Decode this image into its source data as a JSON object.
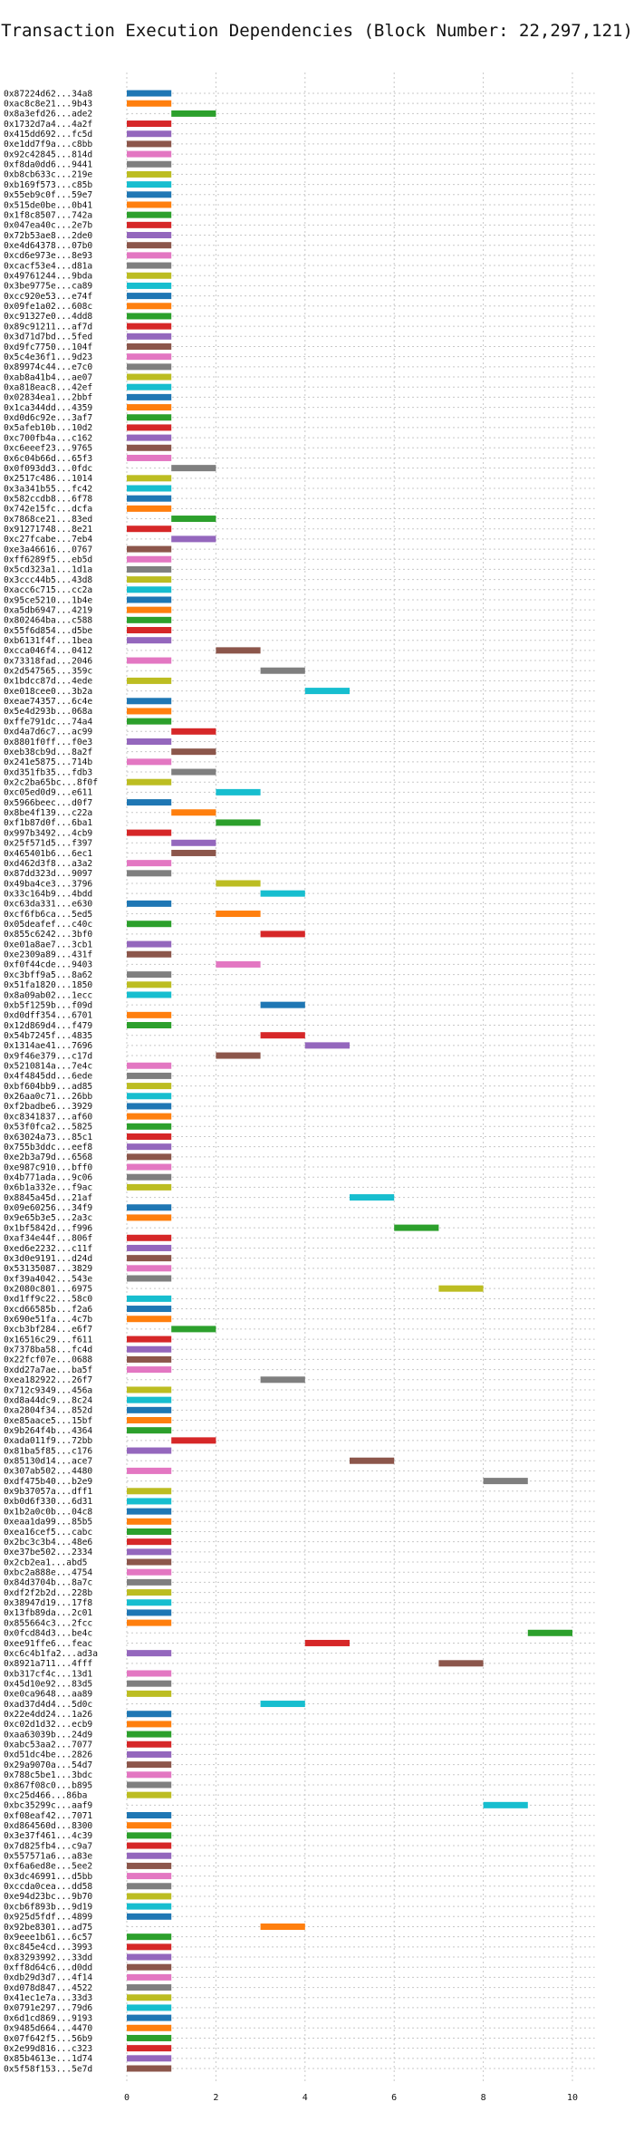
{
  "chart_data": {
    "type": "bar",
    "orientation": "horizontal-gantt",
    "title": "Transaction Execution Dependencies (Block Number: 22,297,121)",
    "xlabel": "",
    "ylabel": "",
    "xlim": [
      0,
      10.5
    ],
    "xticks": [
      0,
      2,
      4,
      6,
      8,
      10
    ],
    "grid": true,
    "colors": [
      "#1f77b4",
      "#ff7f0e",
      "#2ca02c",
      "#d62728",
      "#9467bd",
      "#8c564b",
      "#e377c2",
      "#7f7f7f",
      "#bcbd22",
      "#17becf"
    ],
    "tasks": [
      {
        "label": "0x87224d62...34a8",
        "start": 0,
        "end": 1
      },
      {
        "label": "0xac8c8e21...9b43",
        "start": 0,
        "end": 1
      },
      {
        "label": "0x8a3efd26...ade2",
        "start": 1,
        "end": 2
      },
      {
        "label": "0x1732d7a4...4a2f",
        "start": 0,
        "end": 1
      },
      {
        "label": "0x415dd692...fc5d",
        "start": 0,
        "end": 1
      },
      {
        "label": "0xe1dd7f9a...c8bb",
        "start": 0,
        "end": 1
      },
      {
        "label": "0x92c42845...814d",
        "start": 0,
        "end": 1
      },
      {
        "label": "0xf8da0dd6...9441",
        "start": 0,
        "end": 1
      },
      {
        "label": "0xb8cb633c...219e",
        "start": 0,
        "end": 1
      },
      {
        "label": "0xb169f573...c85b",
        "start": 0,
        "end": 1
      },
      {
        "label": "0x55eb9c0f...59e7",
        "start": 0,
        "end": 1
      },
      {
        "label": "0x515de0be...0b41",
        "start": 0,
        "end": 1
      },
      {
        "label": "0x1f8c8507...742a",
        "start": 0,
        "end": 1
      },
      {
        "label": "0x047ea40c...2e7b",
        "start": 0,
        "end": 1
      },
      {
        "label": "0x72b53ae8...2de0",
        "start": 0,
        "end": 1
      },
      {
        "label": "0xe4d64378...07b0",
        "start": 0,
        "end": 1
      },
      {
        "label": "0xcd6e973e...8e93",
        "start": 0,
        "end": 1
      },
      {
        "label": "0xcacf53e4...d81a",
        "start": 0,
        "end": 1
      },
      {
        "label": "0x49761244...9bda",
        "start": 0,
        "end": 1
      },
      {
        "label": "0x3be9775e...ca89",
        "start": 0,
        "end": 1
      },
      {
        "label": "0xcc920e53...e74f",
        "start": 0,
        "end": 1
      },
      {
        "label": "0x09fe1a02...608c",
        "start": 0,
        "end": 1
      },
      {
        "label": "0xc91327e0...4dd8",
        "start": 0,
        "end": 1
      },
      {
        "label": "0x89c91211...af7d",
        "start": 0,
        "end": 1
      },
      {
        "label": "0x3d71d7bd...5fed",
        "start": 0,
        "end": 1
      },
      {
        "label": "0xd9fc7750...104f",
        "start": 0,
        "end": 1
      },
      {
        "label": "0x5c4e36f1...9d23",
        "start": 0,
        "end": 1
      },
      {
        "label": "0x89974c44...e7c0",
        "start": 0,
        "end": 1
      },
      {
        "label": "0xab8a41b4...ae07",
        "start": 0,
        "end": 1
      },
      {
        "label": "0xa818eac8...42ef",
        "start": 0,
        "end": 1
      },
      {
        "label": "0x02834ea1...2bbf",
        "start": 0,
        "end": 1
      },
      {
        "label": "0x1ca344dd...4359",
        "start": 0,
        "end": 1
      },
      {
        "label": "0xd0d6c92e...3af7",
        "start": 0,
        "end": 1
      },
      {
        "label": "0x5afeb10b...10d2",
        "start": 0,
        "end": 1
      },
      {
        "label": "0xc700fb4a...c162",
        "start": 0,
        "end": 1
      },
      {
        "label": "0xc6eeef23...9765",
        "start": 0,
        "end": 1
      },
      {
        "label": "0x6c04b66d...65f3",
        "start": 0,
        "end": 1
      },
      {
        "label": "0x0f093dd3...0fdc",
        "start": 1,
        "end": 2
      },
      {
        "label": "0x2517c486...1014",
        "start": 0,
        "end": 1
      },
      {
        "label": "0x3a341b55...fc42",
        "start": 0,
        "end": 1
      },
      {
        "label": "0x582ccdb8...6f78",
        "start": 0,
        "end": 1
      },
      {
        "label": "0x742e15fc...dcfa",
        "start": 0,
        "end": 1
      },
      {
        "label": "0x7868ce21...83ed",
        "start": 1,
        "end": 2
      },
      {
        "label": "0x91271748...8e21",
        "start": 0,
        "end": 1
      },
      {
        "label": "0xc27fcabe...7eb4",
        "start": 1,
        "end": 2
      },
      {
        "label": "0xe3a46616...0767",
        "start": 0,
        "end": 1
      },
      {
        "label": "0xff6289f5...eb5d",
        "start": 0,
        "end": 1
      },
      {
        "label": "0x5cd323a1...1d1a",
        "start": 0,
        "end": 1
      },
      {
        "label": "0x3ccc44b5...43d8",
        "start": 0,
        "end": 1
      },
      {
        "label": "0xacc6c715...cc2a",
        "start": 0,
        "end": 1
      },
      {
        "label": "0x95ce5210...1b4e",
        "start": 0,
        "end": 1
      },
      {
        "label": "0xa5db6947...4219",
        "start": 0,
        "end": 1
      },
      {
        "label": "0x802464ba...c588",
        "start": 0,
        "end": 1
      },
      {
        "label": "0x55f6d854...d5be",
        "start": 0,
        "end": 1
      },
      {
        "label": "0xb6131f4f...1bea",
        "start": 0,
        "end": 1
      },
      {
        "label": "0xcca046f4...0412",
        "start": 2,
        "end": 3
      },
      {
        "label": "0x73318fad...2046",
        "start": 0,
        "end": 1
      },
      {
        "label": "0x2d547565...359c",
        "start": 3,
        "end": 4
      },
      {
        "label": "0x1bdcc87d...4ede",
        "start": 0,
        "end": 1
      },
      {
        "label": "0xe018cee0...3b2a",
        "start": 4,
        "end": 5
      },
      {
        "label": "0xeae74357...6c4e",
        "start": 0,
        "end": 1
      },
      {
        "label": "0x5e4d293b...068a",
        "start": 0,
        "end": 1
      },
      {
        "label": "0xffe791dc...74a4",
        "start": 0,
        "end": 1
      },
      {
        "label": "0xd4a7d6c7...ac99",
        "start": 1,
        "end": 2
      },
      {
        "label": "0x8801f0ff...f0e3",
        "start": 0,
        "end": 1
      },
      {
        "label": "0xeb38cb9d...8a2f",
        "start": 1,
        "end": 2
      },
      {
        "label": "0x241e5875...714b",
        "start": 0,
        "end": 1
      },
      {
        "label": "0xd351fb35...fdb3",
        "start": 1,
        "end": 2
      },
      {
        "label": "0x2c2ba65bc...8f0f",
        "start": 0,
        "end": 1
      },
      {
        "label": "0xc05ed0d9...e611",
        "start": 2,
        "end": 3
      },
      {
        "label": "0x5966beec...d0f7",
        "start": 0,
        "end": 1
      },
      {
        "label": "0x8be4f139...c22a",
        "start": 1,
        "end": 2
      },
      {
        "label": "0xf1b87d0f...6ba1",
        "start": 2,
        "end": 3
      },
      {
        "label": "0x997b3492...4cb9",
        "start": 0,
        "end": 1
      },
      {
        "label": "0x25f571d5...f397",
        "start": 1,
        "end": 2
      },
      {
        "label": "0x465401b6...6ec1",
        "start": 1,
        "end": 2
      },
      {
        "label": "0xd462d3f8...a3a2",
        "start": 0,
        "end": 1
      },
      {
        "label": "0x87dd323d...9097",
        "start": 0,
        "end": 1
      },
      {
        "label": "0x49ba4ce3...3796",
        "start": 2,
        "end": 3
      },
      {
        "label": "0x33c164b9...4bdd",
        "start": 3,
        "end": 4
      },
      {
        "label": "0xc63da331...e630",
        "start": 0,
        "end": 1
      },
      {
        "label": "0xcf6fb6ca...5ed5",
        "start": 2,
        "end": 3
      },
      {
        "label": "0x05deafef...c40c",
        "start": 0,
        "end": 1
      },
      {
        "label": "0x855c6242...3bf0",
        "start": 3,
        "end": 4
      },
      {
        "label": "0xe01a8ae7...3cb1",
        "start": 0,
        "end": 1
      },
      {
        "label": "0xe2309a89...431f",
        "start": 0,
        "end": 1
      },
      {
        "label": "0xf0f44cde...9403",
        "start": 2,
        "end": 3
      },
      {
        "label": "0xc3bff9a5...8a62",
        "start": 0,
        "end": 1
      },
      {
        "label": "0x51fa1820...1850",
        "start": 0,
        "end": 1
      },
      {
        "label": "0x8a09ab02...1ecc",
        "start": 0,
        "end": 1
      },
      {
        "label": "0xb5f1259b...f09d",
        "start": 3,
        "end": 4
      },
      {
        "label": "0xd0dff354...6701",
        "start": 0,
        "end": 1
      },
      {
        "label": "0x12d869d4...f479",
        "start": 0,
        "end": 1
      },
      {
        "label": "0x54b7245f...4835",
        "start": 3,
        "end": 4
      },
      {
        "label": "0x1314ae41...7696",
        "start": 4,
        "end": 5
      },
      {
        "label": "0x9f46e379...c17d",
        "start": 2,
        "end": 3
      },
      {
        "label": "0x5210814a...7e4c",
        "start": 0,
        "end": 1
      },
      {
        "label": "0x4f4845dd...6ede",
        "start": 0,
        "end": 1
      },
      {
        "label": "0xbf604bb9...ad85",
        "start": 0,
        "end": 1
      },
      {
        "label": "0x26aa0c71...26bb",
        "start": 0,
        "end": 1
      },
      {
        "label": "0xf2badbe6...3929",
        "start": 0,
        "end": 1
      },
      {
        "label": "0xc8341837...af60",
        "start": 0,
        "end": 1
      },
      {
        "label": "0x53f0fca2...5825",
        "start": 0,
        "end": 1
      },
      {
        "label": "0x63024a73...85c1",
        "start": 0,
        "end": 1
      },
      {
        "label": "0x755b3ddc...eef8",
        "start": 0,
        "end": 1
      },
      {
        "label": "0xe2b3a79d...6568",
        "start": 0,
        "end": 1
      },
      {
        "label": "0xe987c910...bff0",
        "start": 0,
        "end": 1
      },
      {
        "label": "0x4b771ada...9c06",
        "start": 0,
        "end": 1
      },
      {
        "label": "0x6b1a332e...f9ac",
        "start": 0,
        "end": 1
      },
      {
        "label": "0x8845a45d...21af",
        "start": 5,
        "end": 6
      },
      {
        "label": "0x09e60256...34f9",
        "start": 0,
        "end": 1
      },
      {
        "label": "0x9e65b3e5...2a3c",
        "start": 0,
        "end": 1
      },
      {
        "label": "0x1bf5842d...f996",
        "start": 6,
        "end": 7
      },
      {
        "label": "0xaf34e44f...806f",
        "start": 0,
        "end": 1
      },
      {
        "label": "0xed6e2232...c11f",
        "start": 0,
        "end": 1
      },
      {
        "label": "0x3d0e9191...d24d",
        "start": 0,
        "end": 1
      },
      {
        "label": "0x53135087...3829",
        "start": 0,
        "end": 1
      },
      {
        "label": "0xf39a4042...543e",
        "start": 0,
        "end": 1
      },
      {
        "label": "0x2080c801...6975",
        "start": 7,
        "end": 8
      },
      {
        "label": "0xd1ff9c22...58c0",
        "start": 0,
        "end": 1
      },
      {
        "label": "0xcd66585b...f2a6",
        "start": 0,
        "end": 1
      },
      {
        "label": "0x690e51fa...4c7b",
        "start": 0,
        "end": 1
      },
      {
        "label": "0xcb3bf284...e6f7",
        "start": 1,
        "end": 2
      },
      {
        "label": "0x16516c29...f611",
        "start": 0,
        "end": 1
      },
      {
        "label": "0x7378ba58...fc4d",
        "start": 0,
        "end": 1
      },
      {
        "label": "0x22fcf07e...0688",
        "start": 0,
        "end": 1
      },
      {
        "label": "0xdd27a7ae...ba5f",
        "start": 0,
        "end": 1
      },
      {
        "label": "0xea182922...26f7",
        "start": 3,
        "end": 4
      },
      {
        "label": "0x712c9349...456a",
        "start": 0,
        "end": 1
      },
      {
        "label": "0xd8a44dc9...8c24",
        "start": 0,
        "end": 1
      },
      {
        "label": "0xa2804f34...852d",
        "start": 0,
        "end": 1
      },
      {
        "label": "0xe85aace5...15bf",
        "start": 0,
        "end": 1
      },
      {
        "label": "0x9b264f4b...4364",
        "start": 0,
        "end": 1
      },
      {
        "label": "0xada011f9...72bb",
        "start": 1,
        "end": 2
      },
      {
        "label": "0x81ba5f85...c176",
        "start": 0,
        "end": 1
      },
      {
        "label": "0x85130d14...ace7",
        "start": 5,
        "end": 6
      },
      {
        "label": "0x307ab502...4480",
        "start": 0,
        "end": 1
      },
      {
        "label": "0xdf475b40...b2e9",
        "start": 8,
        "end": 9
      },
      {
        "label": "0x9b37057a...dff1",
        "start": 0,
        "end": 1
      },
      {
        "label": "0xb0d6f330...6d31",
        "start": 0,
        "end": 1
      },
      {
        "label": "0x1b2a0c0b...04c8",
        "start": 0,
        "end": 1
      },
      {
        "label": "0xeaa1da99...85b5",
        "start": 0,
        "end": 1
      },
      {
        "label": "0xea16cef5...cabc",
        "start": 0,
        "end": 1
      },
      {
        "label": "0x2bc3c3b4...48e6",
        "start": 0,
        "end": 1
      },
      {
        "label": "0xe37be502...2334",
        "start": 0,
        "end": 1
      },
      {
        "label": "0x2cb2ea1...abd5",
        "start": 0,
        "end": 1
      },
      {
        "label": "0xbc2a888e...4754",
        "start": 0,
        "end": 1
      },
      {
        "label": "0x84d3704b...8a7c",
        "start": 0,
        "end": 1
      },
      {
        "label": "0xdf2f2b2d...228b",
        "start": 0,
        "end": 1
      },
      {
        "label": "0x38947d19...17f8",
        "start": 0,
        "end": 1
      },
      {
        "label": "0x13fb89da...2c01",
        "start": 0,
        "end": 1
      },
      {
        "label": "0x855664c3...2fcc",
        "start": 0,
        "end": 1
      },
      {
        "label": "0x0fcd84d3...be4c",
        "start": 9,
        "end": 10
      },
      {
        "label": "0xee91ffe6...feac",
        "start": 4,
        "end": 5
      },
      {
        "label": "0xc6c4b1fa2...ad3a",
        "start": 0,
        "end": 1
      },
      {
        "label": "0x8921a711...4fff",
        "start": 7,
        "end": 8
      },
      {
        "label": "0xb317cf4c...13d1",
        "start": 0,
        "end": 1
      },
      {
        "label": "0x45d10e92...83d5",
        "start": 0,
        "end": 1
      },
      {
        "label": "0xe0ca9648...aa89",
        "start": 0,
        "end": 1
      },
      {
        "label": "0xad37d4d4...5d0c",
        "start": 3,
        "end": 4
      },
      {
        "label": "0x22e4dd24...1a26",
        "start": 0,
        "end": 1
      },
      {
        "label": "0xc02d1d32...ecb9",
        "start": 0,
        "end": 1
      },
      {
        "label": "0xaa63039b...24d9",
        "start": 0,
        "end": 1
      },
      {
        "label": "0xabc53aa2...7077",
        "start": 0,
        "end": 1
      },
      {
        "label": "0xd51dc4be...2826",
        "start": 0,
        "end": 1
      },
      {
        "label": "0x29a9070a...54d7",
        "start": 0,
        "end": 1
      },
      {
        "label": "0x788c5be1...3bdc",
        "start": 0,
        "end": 1
      },
      {
        "label": "0x867f08c0...b895",
        "start": 0,
        "end": 1
      },
      {
        "label": "0xc25d466...86ba",
        "start": 0,
        "end": 1
      },
      {
        "label": "0xbc35299c...aaf9",
        "start": 8,
        "end": 9
      },
      {
        "label": "0xf08eaf42...7071",
        "start": 0,
        "end": 1
      },
      {
        "label": "0xd864560d...8300",
        "start": 0,
        "end": 1
      },
      {
        "label": "0x3e37f461...4c39",
        "start": 0,
        "end": 1
      },
      {
        "label": "0x7d825fb4...c9a7",
        "start": 0,
        "end": 1
      },
      {
        "label": "0x557571a6...a83e",
        "start": 0,
        "end": 1
      },
      {
        "label": "0xf6a6ed8e...5ee2",
        "start": 0,
        "end": 1
      },
      {
        "label": "0x3dc46991...d5bb",
        "start": 0,
        "end": 1
      },
      {
        "label": "0xccda0cea...dd58",
        "start": 0,
        "end": 1
      },
      {
        "label": "0xe94d23bc...9b70",
        "start": 0,
        "end": 1
      },
      {
        "label": "0xcb6f893b...9d19",
        "start": 0,
        "end": 1
      },
      {
        "label": "0x925d5fdf...4899",
        "start": 0,
        "end": 1
      },
      {
        "label": "0x92be8301...ad75",
        "start": 3,
        "end": 4
      },
      {
        "label": "0x9eee1b61...6c57",
        "start": 0,
        "end": 1
      },
      {
        "label": "0xc845e4cd...3993",
        "start": 0,
        "end": 1
      },
      {
        "label": "0x83293992...33dd",
        "start": 0,
        "end": 1
      },
      {
        "label": "0xff8d64c6...d0dd",
        "start": 0,
        "end": 1
      },
      {
        "label": "0xdb29d3d7...4f14",
        "start": 0,
        "end": 1
      },
      {
        "label": "0xd078d847...4522",
        "start": 0,
        "end": 1
      },
      {
        "label": "0x41ec1e7a...33d3",
        "start": 0,
        "end": 1
      },
      {
        "label": "0x0791e297...79d6",
        "start": 0,
        "end": 1
      },
      {
        "label": "0x6d1cd869...9193",
        "start": 0,
        "end": 1
      },
      {
        "label": "0x9485d664...4470",
        "start": 0,
        "end": 1
      },
      {
        "label": "0x07f642f5...56b9",
        "start": 0,
        "end": 1
      },
      {
        "label": "0x2e99d816...c323",
        "start": 0,
        "end": 1
      },
      {
        "label": "0x85b4613e...1d74",
        "start": 0,
        "end": 1
      },
      {
        "label": "0x5f58f153...5e7d",
        "start": 0,
        "end": 1
      }
    ]
  }
}
